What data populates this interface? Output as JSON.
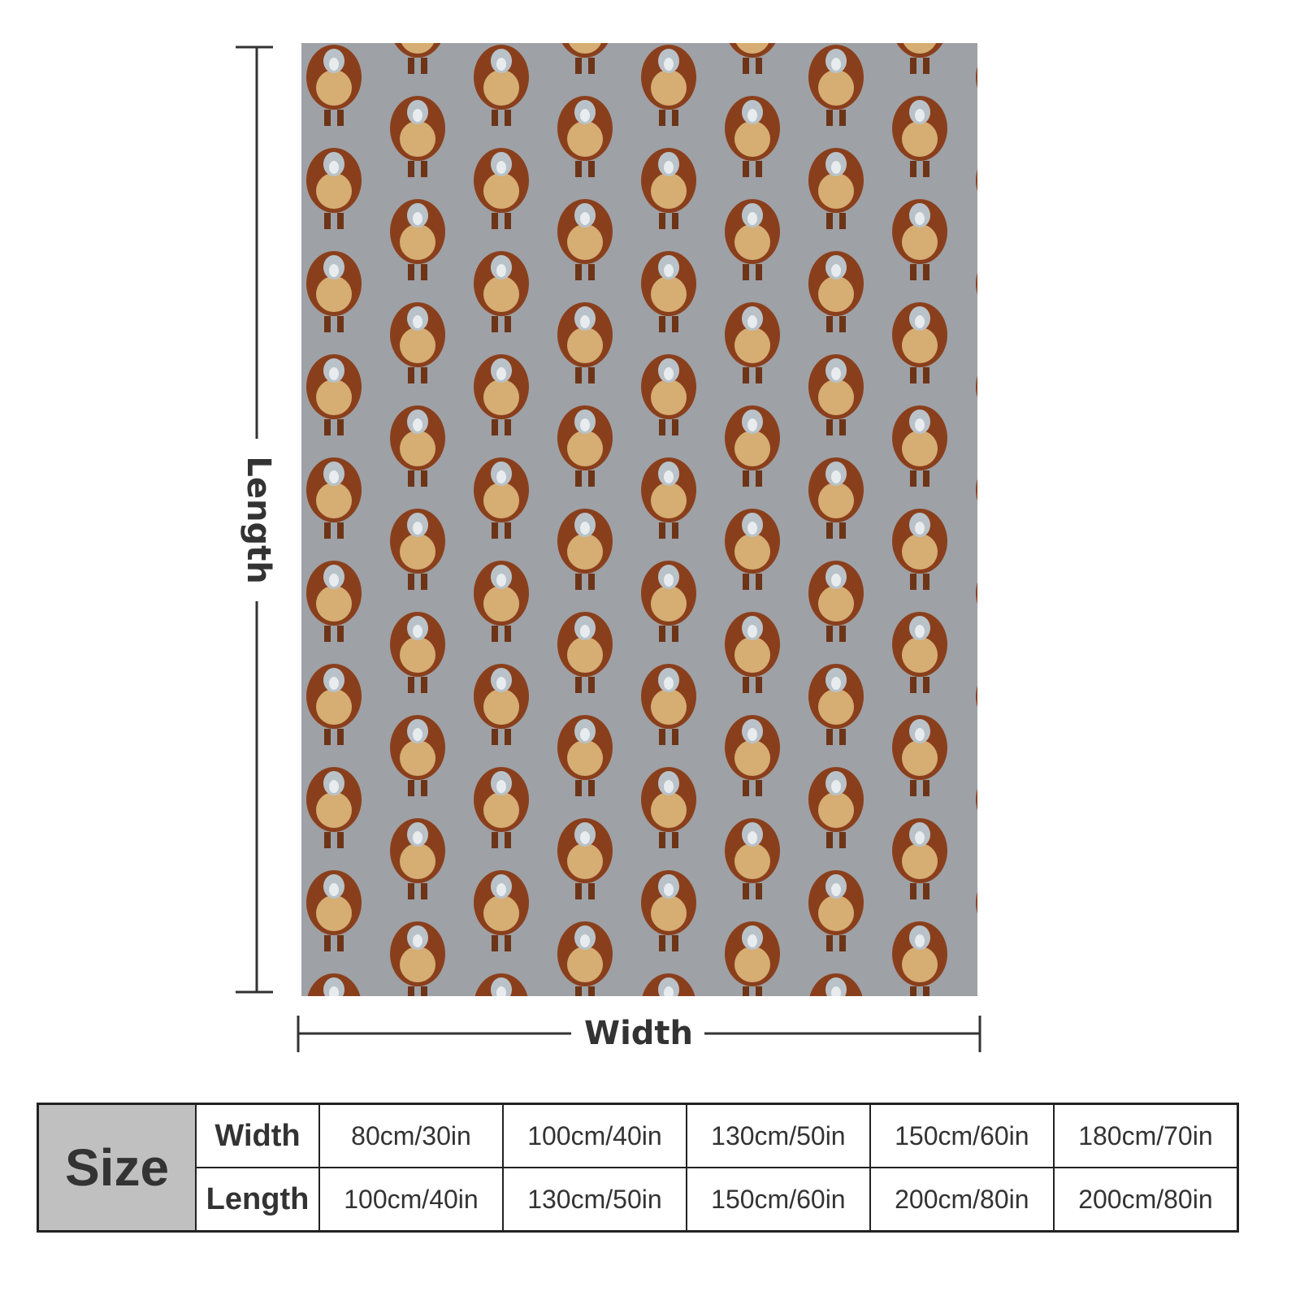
{
  "dimension_labels": {
    "length": "Length",
    "width": "Width"
  },
  "table": {
    "header": "Size",
    "rows": [
      [
        "Width",
        "80cm/30in",
        "100cm/40in",
        "130cm/50in",
        "150cm/60in",
        "180cm/70in"
      ],
      [
        "Length",
        "100cm/40in",
        "130cm/50in",
        "150cm/60in",
        "200cm/80in",
        "200cm/80in"
      ]
    ]
  }
}
